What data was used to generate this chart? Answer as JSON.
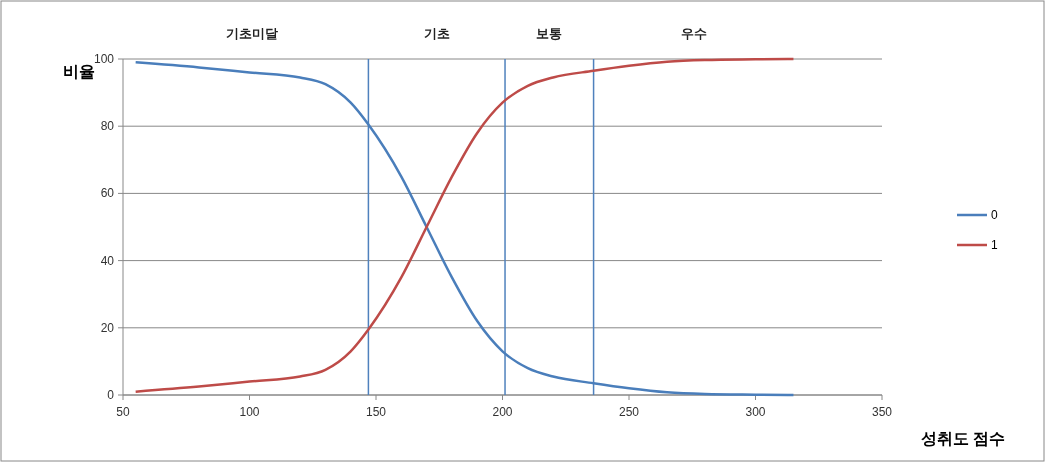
{
  "chart_data": {
    "type": "line",
    "xlabel": "성취도 점수",
    "ylabel": "비율",
    "x": [
      55,
      80,
      100,
      120,
      130,
      140,
      147,
      160,
      170,
      180,
      190,
      200,
      210,
      220,
      236,
      250,
      265,
      280,
      300,
      315
    ],
    "series": [
      {
        "name": "0",
        "color": "#4a7ebb",
        "values": [
          99,
          97.5,
          96,
          94.5,
          92.5,
          87,
          80.5,
          65,
          50,
          35,
          22,
          13,
          8,
          5.5,
          3.5,
          2,
          0.8,
          0.3,
          0.1,
          0
        ]
      },
      {
        "name": "1",
        "color": "#be4b48",
        "values": [
          1,
          2.5,
          4,
          5.5,
          7.5,
          13,
          19.5,
          35,
          50,
          65,
          78,
          87,
          92,
          94.5,
          96.5,
          98,
          99.2,
          99.7,
          99.9,
          100
        ]
      }
    ],
    "xlim": [
      50,
      350
    ],
    "xticks": [
      50,
      100,
      150,
      200,
      250,
      300,
      350
    ],
    "ylim": [
      0,
      100
    ],
    "yticks": [
      0,
      20,
      40,
      60,
      80,
      100
    ],
    "grid": "y",
    "legend": "right",
    "marker": "none",
    "line_style": "solid",
    "ref_lines": [
      {
        "axis": "x",
        "value": 147,
        "color": "#4f81bd"
      },
      {
        "axis": "x",
        "value": 201,
        "color": "#4f81bd"
      },
      {
        "axis": "x",
        "value": 236,
        "color": "#4f81bd"
      }
    ],
    "annotations": [
      "기초미달",
      "기초",
      "보통",
      "우수"
    ]
  }
}
